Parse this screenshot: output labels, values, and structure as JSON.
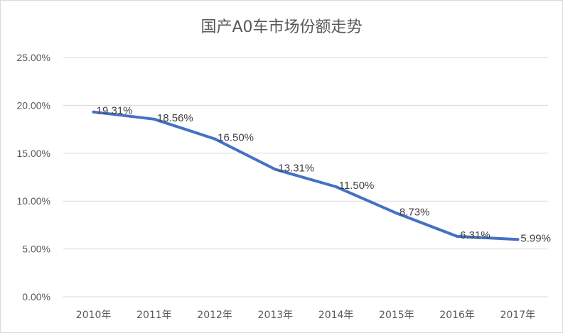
{
  "chart_data": {
    "type": "line",
    "title": "国产A0车市场份额走势",
    "categories": [
      "2010年",
      "2011年",
      "2012年",
      "2013年",
      "2014年",
      "2015年",
      "2016年",
      "2017年"
    ],
    "series": [
      {
        "values": [
          19.31,
          18.56,
          16.5,
          13.31,
          11.5,
          8.73,
          6.31,
          5.99
        ],
        "data_labels": [
          "19.31%",
          "18.56%",
          "16.50%",
          "13.31%",
          "11.50%",
          "8.73%",
          "6.31%",
          "5.99%"
        ],
        "color": "#4472c4"
      }
    ],
    "ylim": [
      0,
      25
    ],
    "yticks": [
      {
        "value": 0,
        "label": "0.00%"
      },
      {
        "value": 5,
        "label": "5.00%"
      },
      {
        "value": 10,
        "label": "10.00%"
      },
      {
        "value": 15,
        "label": "15.00%"
      },
      {
        "value": 20,
        "label": "20.00%"
      },
      {
        "value": 25,
        "label": "25.00%"
      }
    ],
    "grid": true,
    "legend": "none"
  }
}
